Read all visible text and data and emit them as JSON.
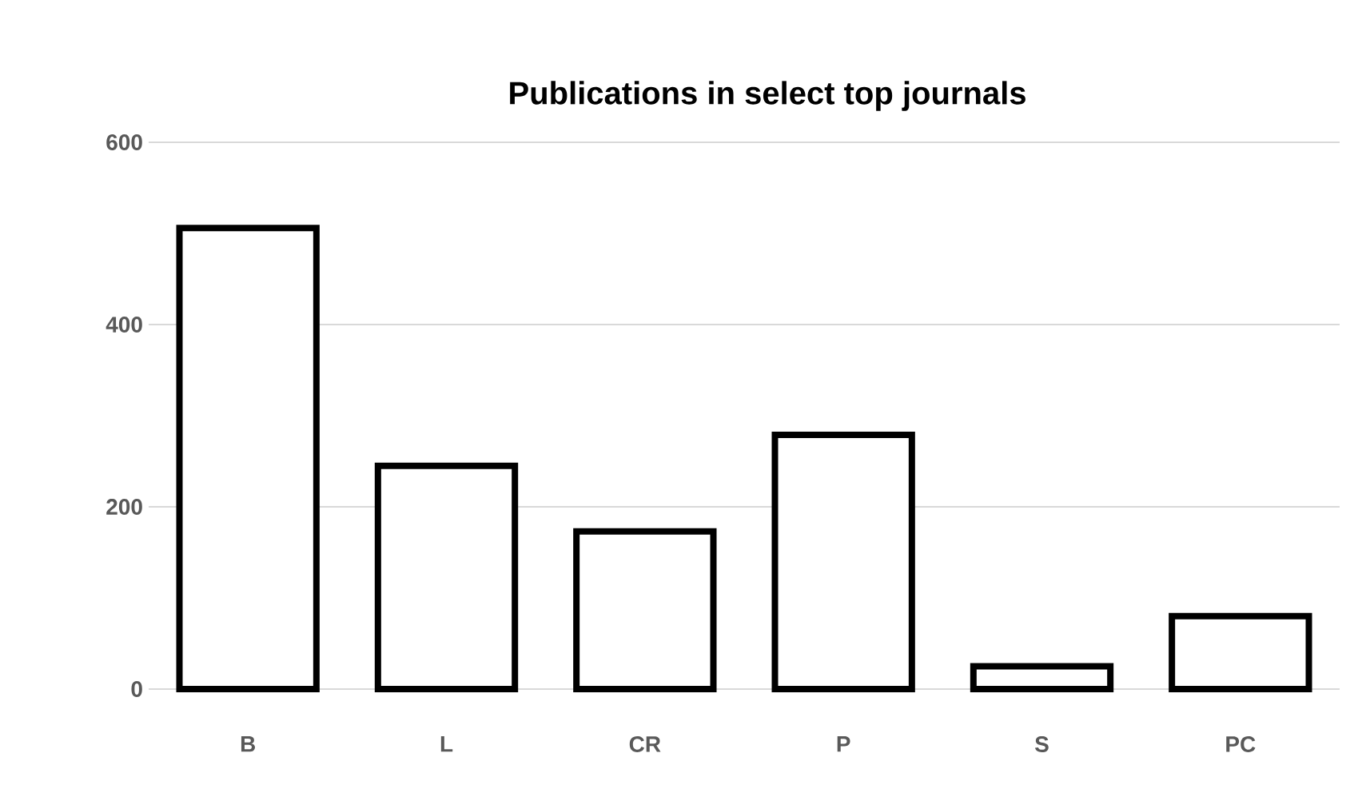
{
  "chart_data": {
    "type": "bar",
    "title": "Publications in select top journals",
    "categories": [
      "B",
      "L",
      "CR",
      "P",
      "S",
      "PC"
    ],
    "values": [
      506,
      245,
      173,
      279,
      25,
      80
    ],
    "color": "#ffffff",
    "ylim": [
      0,
      600
    ],
    "yticks": [
      0,
      200,
      400,
      600
    ],
    "grid": "y"
  }
}
